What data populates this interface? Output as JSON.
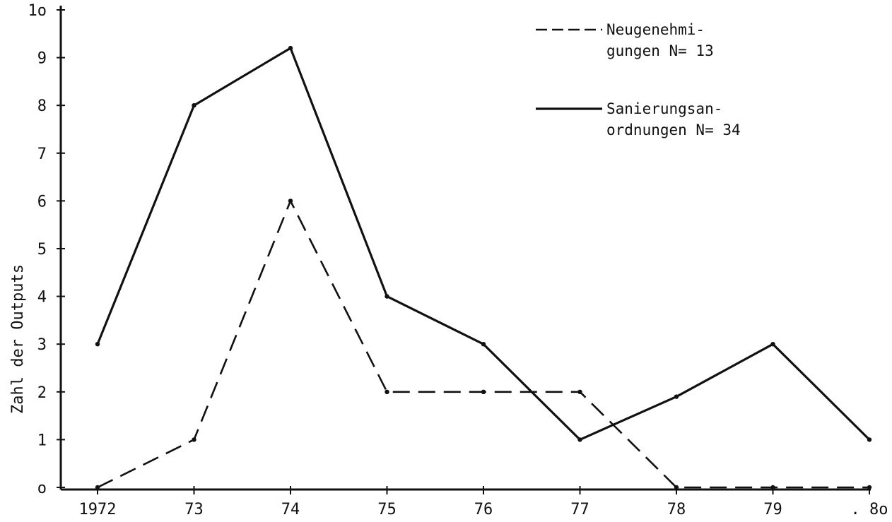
{
  "chart_data": {
    "type": "line",
    "categories": [
      "1972",
      "73",
      "74",
      "75",
      "76",
      "77",
      "78",
      "79",
      ". 8o"
    ],
    "y_ticks": [
      "o",
      "1",
      "2",
      "3",
      "4",
      "5",
      "6",
      "7",
      "8",
      "9",
      "1o"
    ],
    "ylim": [
      0,
      10
    ],
    "ylabel": "Zahl der Outputs",
    "xlabel": "",
    "grid": false,
    "legend_position": "top-right",
    "series": [
      {
        "name_lines": [
          "Neugenehmi-",
          "gungen N= 13"
        ],
        "style": "dashed",
        "values": [
          0,
          1,
          6,
          2,
          2,
          2,
          0,
          0,
          0
        ]
      },
      {
        "name_lines": [
          "Sanierungsan-",
          "ordnungen N= 34"
        ],
        "style": "solid",
        "values": [
          3,
          8,
          9.2,
          4,
          3,
          1,
          1.9,
          3,
          1
        ]
      }
    ]
  }
}
